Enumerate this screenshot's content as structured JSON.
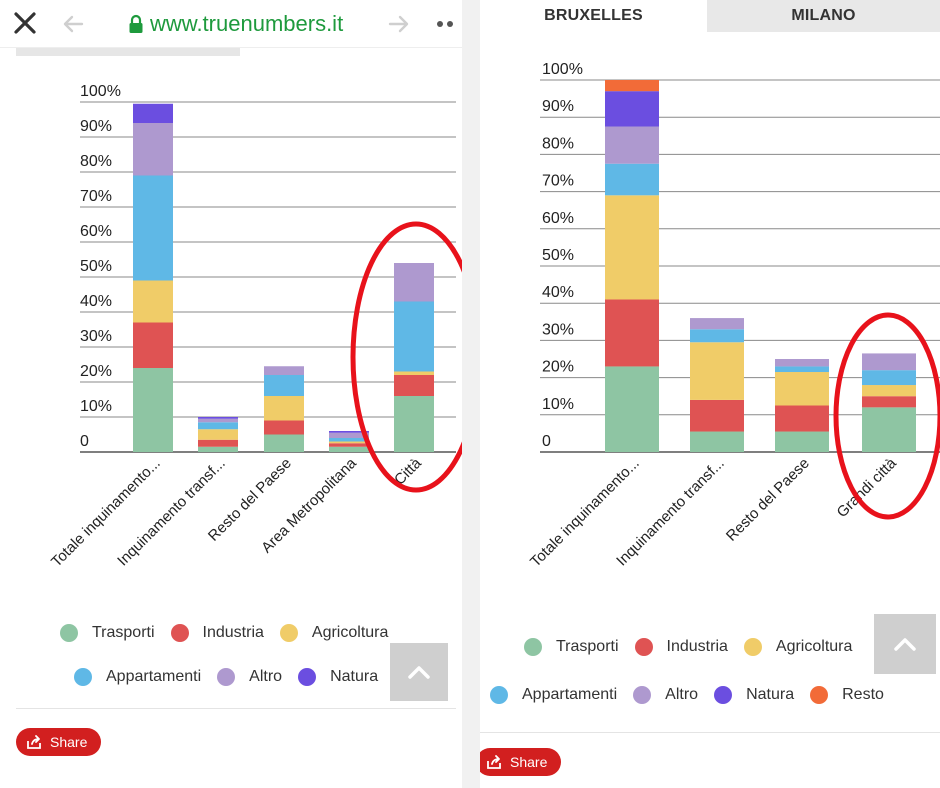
{
  "browser": {
    "url": "www.truenumbers.it",
    "icons": [
      "close-icon",
      "back-arrow-icon",
      "lock-icon",
      "forward-arrow-icon",
      "more-dots-icon"
    ]
  },
  "tabs": [
    {
      "label": "BRUXELLES",
      "selected": true
    },
    {
      "label": "MILANO",
      "selected": false
    }
  ],
  "share_label": "Share",
  "colors": {
    "Trasporti": "#8ec5a3",
    "Industria": "#df5353",
    "Agricoltura": "#f0cc68",
    "Appartamenti": "#5fb8e6",
    "Altro": "#ae99cf",
    "Natura": "#6b4ee0",
    "Resto": "#f26b38",
    "highlight": "#e8121b",
    "share": "#d21f1f",
    "url": "#1e9a3d"
  },
  "chart_data": [
    {
      "type": "bar",
      "stacked": true,
      "categories": [
        "Totale inquinamento...",
        "Inquinamento transf...",
        "Resto del Paese",
        "Area Metropolitana",
        "Città"
      ],
      "series": [
        {
          "name": "Trasporti",
          "values": [
            24,
            1.5,
            5,
            1.5,
            16
          ]
        },
        {
          "name": "Industria",
          "values": [
            13,
            2,
            4,
            1,
            6
          ]
        },
        {
          "name": "Agricoltura",
          "values": [
            12,
            3,
            7,
            0.5,
            1
          ]
        },
        {
          "name": "Appartamenti",
          "values": [
            30,
            2,
            6,
            1,
            20
          ]
        },
        {
          "name": "Altro",
          "values": [
            15,
            1,
            2.5,
            1.5,
            11
          ]
        },
        {
          "name": "Natura",
          "values": [
            5.5,
            0.5,
            0,
            0.5,
            0
          ]
        }
      ],
      "yticks": [
        "0",
        "10%",
        "20%",
        "30%",
        "40%",
        "50%",
        "60%",
        "70%",
        "80%",
        "90%",
        "100%"
      ],
      "ylim": [
        0,
        100
      ],
      "highlight_category": "Città",
      "legend": [
        "Trasporti",
        "Industria",
        "Agricoltura",
        "Appartamenti",
        "Altro",
        "Natura"
      ],
      "legend_position": "bottom"
    },
    {
      "type": "bar",
      "stacked": true,
      "categories": [
        "Totale inquinamento...",
        "Inquinamento transf...",
        "Resto del Paese",
        "Grandi città"
      ],
      "series": [
        {
          "name": "Trasporti",
          "values": [
            23,
            5.5,
            5.5,
            12
          ]
        },
        {
          "name": "Industria",
          "values": [
            18,
            8.5,
            7,
            3
          ]
        },
        {
          "name": "Agricoltura",
          "values": [
            28,
            15.5,
            9,
            3
          ]
        },
        {
          "name": "Appartamenti",
          "values": [
            8.5,
            3.5,
            1.5,
            4
          ]
        },
        {
          "name": "Altro",
          "values": [
            10,
            3,
            2,
            4.5
          ]
        },
        {
          "name": "Natura",
          "values": [
            9.5,
            0,
            0,
            0
          ]
        },
        {
          "name": "Resto",
          "values": [
            3,
            0,
            0,
            0
          ]
        }
      ],
      "yticks": [
        "0",
        "10%",
        "20%",
        "30%",
        "40%",
        "50%",
        "60%",
        "70%",
        "80%",
        "90%",
        "100%"
      ],
      "ylim": [
        0,
        100
      ],
      "highlight_category": "Grandi città",
      "legend": [
        "Trasporti",
        "Industria",
        "Agricoltura",
        "Appartamenti",
        "Altro",
        "Natura",
        "Resto"
      ],
      "legend_position": "bottom"
    }
  ]
}
